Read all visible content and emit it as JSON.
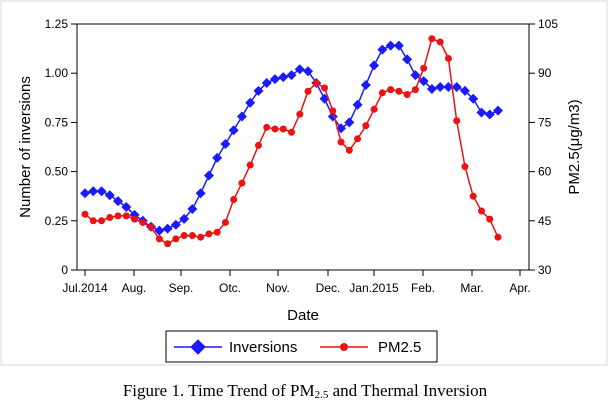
{
  "caption": {
    "prefix": "Figure 1. Time Trend of PM",
    "sub": "2.5",
    "suffix": " and Thermal Inversion"
  },
  "chart_data": {
    "type": "line",
    "xlabel": "Date",
    "ylabel_left": "Number of inversions",
    "ylabel_right": "PM2.5(μg/m3)",
    "x_tick_labels": [
      "Jul.2014",
      "Aug.",
      "Sep.",
      "Otc.",
      "Nov.",
      "Dec.",
      "Jan.2015",
      "Feb.",
      "Mar.",
      "Apr."
    ],
    "y_left": {
      "range": [
        0,
        1.25
      ],
      "ticks": [
        "0",
        "0.25",
        "0.50",
        "0.75",
        "1.00",
        "1.25"
      ]
    },
    "y_right": {
      "range": [
        30,
        105
      ],
      "ticks": [
        "30",
        "45",
        "60",
        "75",
        "90",
        "105"
      ]
    },
    "legend": {
      "placement": "bottom-center"
    },
    "series": [
      {
        "name": "Inversions",
        "axis": "left",
        "color": "#1a1aff",
        "marker": "diamond",
        "values": [
          0.39,
          0.4,
          0.4,
          0.38,
          0.35,
          0.32,
          0.28,
          0.25,
          0.22,
          0.2,
          0.21,
          0.23,
          0.26,
          0.31,
          0.39,
          0.48,
          0.57,
          0.64,
          0.71,
          0.78,
          0.85,
          0.91,
          0.95,
          0.97,
          0.98,
          0.99,
          1.02,
          1.01,
          0.95,
          0.87,
          0.78,
          0.72,
          0.75,
          0.84,
          0.94,
          1.04,
          1.12,
          1.14,
          1.14,
          1.07,
          0.99,
          0.96,
          0.92,
          0.93,
          0.93,
          0.93,
          0.91,
          0.87,
          0.8,
          0.79,
          0.81
        ]
      },
      {
        "name": "PM2.5",
        "axis": "right",
        "color": "#ee1111",
        "marker": "circle",
        "values": [
          47.0,
          45.0,
          45.0,
          46.0,
          46.5,
          46.5,
          45.5,
          44.5,
          43.0,
          39.5,
          38.0,
          39.5,
          40.5,
          40.5,
          40.0,
          41.0,
          41.5,
          44.5,
          51.5,
          56.5,
          62.0,
          68.0,
          73.5,
          73.0,
          73.0,
          72.0,
          77.5,
          84.5,
          87.0,
          85.5,
          78.5,
          69.0,
          66.5,
          70.0,
          74.0,
          79.0,
          84.0,
          85.0,
          84.5,
          83.5,
          85.0,
          91.5,
          100.5,
          99.5,
          94.5,
          75.5,
          61.5,
          52.5,
          48.0,
          45.5,
          40.0
        ]
      }
    ]
  }
}
